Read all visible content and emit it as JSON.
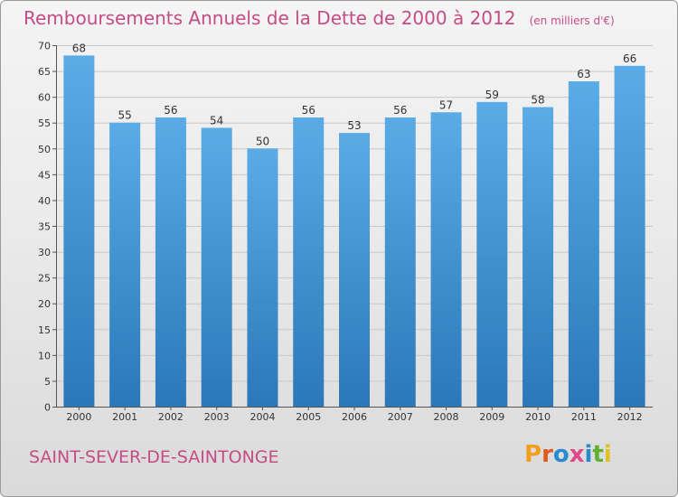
{
  "header": {
    "title": "Remboursements Annuels de la Dette de 2000 à 2012",
    "unit": "(en milliers d'€)"
  },
  "footer": {
    "commune": "SAINT-SEVER-DE-SAINTONGE",
    "logo": "Proxiti"
  },
  "colors": {
    "title": "#c44d86",
    "bar_light": "#5aabe6",
    "bar_dark": "#2a78b8",
    "grid": "#c8c8c8",
    "logo": [
      "#f0a020",
      "#e05a20",
      "#2a8ad0",
      "#e04a8a",
      "#2a8ad0",
      "#60b030",
      "#e0c020"
    ]
  },
  "chart_data": {
    "type": "bar",
    "categories": [
      "2000",
      "2001",
      "2002",
      "2003",
      "2004",
      "2005",
      "2006",
      "2007",
      "2008",
      "2009",
      "2010",
      "2011",
      "2012"
    ],
    "values": [
      68,
      55,
      56,
      54,
      50,
      56,
      53,
      56,
      57,
      59,
      58,
      63,
      66
    ],
    "title": "Remboursements Annuels de la Dette de 2000 à 2012",
    "xlabel": "",
    "ylabel": "",
    "ylim": [
      0,
      70
    ],
    "yticks": [
      0,
      5,
      10,
      15,
      20,
      25,
      30,
      35,
      40,
      45,
      50,
      55,
      60,
      65,
      70
    ],
    "grid": true,
    "data_labels": true
  }
}
